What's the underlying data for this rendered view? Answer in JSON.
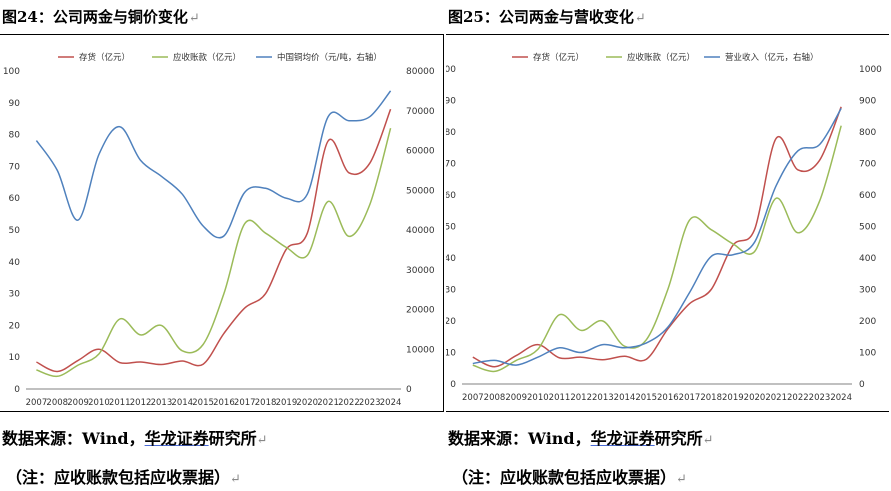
{
  "left": {
    "title": "图24：公司两金与铜价变化",
    "source": "数据来源：Wind，",
    "source_link": "华龙证券",
    "source_tail": "研究所",
    "note": "（注：应收账款包括应收票据）"
  },
  "right": {
    "title": "图25：公司两金与营收变化",
    "source": "数据来源：Wind，",
    "source_link": "华龙证券",
    "source_tail": "研究所",
    "note": "（注：应收账款包括应收票据）"
  },
  "paragraph_mark": "↵",
  "chart_data": [
    {
      "type": "line",
      "categories": [
        "2007",
        "2008",
        "2009",
        "2010",
        "2011",
        "2012",
        "2013",
        "2014",
        "2015",
        "2016",
        "2017",
        "2018",
        "2019",
        "2020",
        "2021",
        "2022",
        "2023",
        "2024"
      ],
      "ylim": [
        0,
        100
      ],
      "yticks": [
        0,
        10,
        20,
        30,
        40,
        50,
        60,
        70,
        80,
        90,
        100
      ],
      "y2lim": [
        0,
        80000
      ],
      "y2ticks": [
        0,
        10000,
        20000,
        30000,
        40000,
        50000,
        60000,
        70000,
        80000
      ],
      "legend_position": "top",
      "series": [
        {
          "name": "存货（亿元）",
          "axis": "left",
          "color": "#c0504d",
          "values": [
            8.5,
            5.5,
            9.0,
            12.5,
            8.3,
            8.5,
            7.7,
            8.8,
            7.8,
            17.5,
            25.5,
            30.0,
            44.0,
            49.0,
            78.0,
            68.0,
            71.0,
            88.0
          ]
        },
        {
          "name": "应收账款（亿元）",
          "axis": "left",
          "color": "#9bbb59",
          "values": [
            6.0,
            4.0,
            7.5,
            11.0,
            22.0,
            17.0,
            20.0,
            12.0,
            14.0,
            30.0,
            52.0,
            49.0,
            44.5,
            42.0,
            59.0,
            48.0,
            58.0,
            82.0
          ]
        },
        {
          "name": "中国铜均价（元/吨，右轴）",
          "axis": "right",
          "color": "#4f81bd",
          "values": [
            62500,
            55000,
            42500,
            59000,
            66000,
            57500,
            53500,
            49000,
            41000,
            38500,
            49500,
            50500,
            48000,
            49000,
            68500,
            67500,
            68500,
            75000
          ]
        }
      ]
    },
    {
      "type": "line",
      "categories": [
        "2007",
        "2008",
        "2009",
        "2010",
        "2011",
        "2012",
        "2013",
        "2014",
        "2015",
        "2016",
        "2017",
        "2018",
        "2019",
        "2020",
        "2021",
        "2022",
        "2023",
        "2024"
      ],
      "ylim": [
        0,
        100
      ],
      "yticks": [
        0,
        10,
        20,
        30,
        40,
        50,
        60,
        70,
        80,
        90,
        100
      ],
      "y2lim": [
        0,
        1000
      ],
      "y2ticks": [
        0,
        100,
        200,
        300,
        400,
        500,
        600,
        700,
        800,
        900,
        1000
      ],
      "legend_position": "top",
      "series": [
        {
          "name": "存货（亿元）",
          "axis": "left",
          "color": "#c0504d",
          "values": [
            8.5,
            5.5,
            9.0,
            12.5,
            8.3,
            8.5,
            7.7,
            8.8,
            7.8,
            17.5,
            25.5,
            30.0,
            44.0,
            49.0,
            78.0,
            68.0,
            71.0,
            88.0
          ]
        },
        {
          "name": "应收账款（亿元）",
          "axis": "left",
          "color": "#9bbb59",
          "values": [
            6.0,
            4.0,
            7.5,
            11.0,
            22.0,
            17.0,
            20.0,
            12.0,
            14.0,
            30.0,
            52.0,
            49.0,
            44.5,
            42.0,
            59.0,
            48.0,
            58.0,
            82.0
          ]
        },
        {
          "name": "营业收入（亿元，右轴）",
          "axis": "right",
          "color": "#4f81bd",
          "values": [
            65,
            75,
            60,
            85,
            115,
            100,
            125,
            115,
            130,
            180,
            290,
            405,
            410,
            450,
            630,
            740,
            760,
            875
          ]
        }
      ]
    }
  ]
}
